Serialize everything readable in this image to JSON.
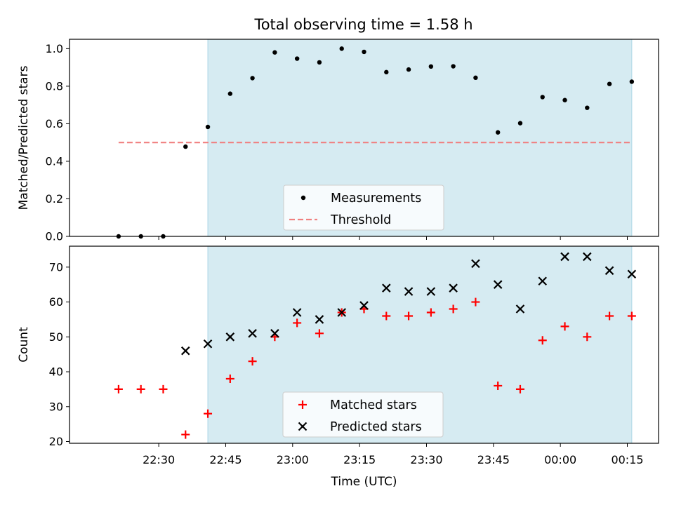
{
  "title": "Total observing time = 1.58 h",
  "colors": {
    "span": "#add8e6",
    "measurements": "#000000",
    "threshold": "#f08080",
    "matched": "#ff0000",
    "predicted": "#000000"
  },
  "chart_data": [
    {
      "type": "scatter",
      "ylabel": "Matched/Predicted stars",
      "ylim": [
        0,
        1.05
      ],
      "yticks": [
        0.0,
        0.2,
        0.4,
        0.6,
        0.8,
        1.0
      ],
      "ytick_labels": [
        "0.0",
        "0.2",
        "0.4",
        "0.6",
        "0.8",
        "1.0"
      ],
      "xlim": [
        "22:10",
        "00:22"
      ],
      "shaded_span": [
        "22:41",
        "00:16"
      ],
      "legend": {
        "placement": "lower center",
        "entries": [
          "Measurements",
          "Threshold"
        ]
      },
      "series": [
        {
          "name": "Measurements",
          "marker": "dot",
          "x": [
            "22:21",
            "22:26",
            "22:31",
            "22:36",
            "22:41",
            "22:46",
            "22:51",
            "22:56",
            "23:01",
            "23:06",
            "23:11",
            "23:16",
            "23:21",
            "23:26",
            "23:31",
            "23:36",
            "23:41",
            "23:46",
            "23:51",
            "23:56",
            "00:01",
            "00:06",
            "00:11",
            "00:16"
          ],
          "y": [
            0.0,
            0.0,
            0.0,
            0.478,
            0.583,
            0.76,
            0.843,
            0.98,
            0.947,
            0.927,
            1.0,
            0.983,
            0.875,
            0.889,
            0.905,
            0.906,
            0.845,
            0.554,
            0.603,
            0.742,
            0.726,
            0.685,
            0.812,
            0.824
          ]
        },
        {
          "name": "Threshold",
          "marker": "dashed-line",
          "x": [
            "22:21",
            "00:16"
          ],
          "y": [
            0.5,
            0.5
          ]
        }
      ]
    },
    {
      "type": "scatter",
      "xlabel": "Time (UTC)",
      "ylabel": "Count",
      "ylim": [
        19.5,
        76
      ],
      "yticks": [
        20,
        30,
        40,
        50,
        60,
        70
      ],
      "ytick_labels": [
        "20",
        "30",
        "40",
        "50",
        "60",
        "70"
      ],
      "xlim": [
        "22:10",
        "00:22"
      ],
      "xticks": [
        "22:30",
        "22:45",
        "23:00",
        "23:15",
        "23:30",
        "23:45",
        "00:00",
        "00:15"
      ],
      "shaded_span": [
        "22:41",
        "00:16"
      ],
      "legend": {
        "placement": "lower center",
        "entries": [
          "Matched stars",
          "Predicted stars"
        ]
      },
      "series": [
        {
          "name": "Matched stars",
          "marker": "plus",
          "x": [
            "22:21",
            "22:26",
            "22:31",
            "22:36",
            "22:41",
            "22:46",
            "22:51",
            "22:56",
            "23:01",
            "23:06",
            "23:11",
            "23:16",
            "23:21",
            "23:26",
            "23:31",
            "23:36",
            "23:41",
            "23:46",
            "23:51",
            "23:56",
            "00:01",
            "00:06",
            "00:11",
            "00:16"
          ],
          "y": [
            35,
            35,
            35,
            22,
            28,
            38,
            43,
            50,
            54,
            51,
            57,
            58,
            56,
            56,
            57,
            58,
            60,
            36,
            35,
            49,
            53,
            50,
            56,
            56
          ]
        },
        {
          "name": "Predicted stars",
          "marker": "x",
          "x": [
            "22:36",
            "22:41",
            "22:46",
            "22:51",
            "22:56",
            "23:01",
            "23:06",
            "23:11",
            "23:16",
            "23:21",
            "23:26",
            "23:31",
            "23:36",
            "23:41",
            "23:46",
            "23:51",
            "23:56",
            "00:01",
            "00:06",
            "00:11",
            "00:16"
          ],
          "y": [
            46,
            48,
            50,
            51,
            51,
            57,
            55,
            57,
            59,
            64,
            63,
            63,
            64,
            71,
            65,
            58,
            66,
            73,
            73,
            69,
            68
          ]
        }
      ]
    }
  ]
}
